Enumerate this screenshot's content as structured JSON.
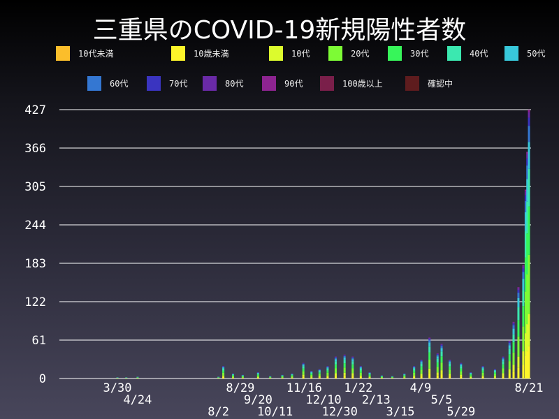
{
  "chart_data": {
    "type": "bar",
    "stacked": true,
    "title": "三重県のCOVID-19新規陽性者数",
    "legend": [
      {
        "name": "10代未満",
        "color": "#fbbe2b"
      },
      {
        "name": "10歳未満",
        "color": "#fdf52a"
      },
      {
        "name": "10代",
        "color": "#dcfb2d"
      },
      {
        "name": "20代",
        "color": "#7dfb35"
      },
      {
        "name": "30代",
        "color": "#37f55a"
      },
      {
        "name": "40代",
        "color": "#3be8b0"
      },
      {
        "name": "50代",
        "color": "#38c8db"
      },
      {
        "name": "60代",
        "color": "#3477d2"
      },
      {
        "name": "70代",
        "color": "#3a34c0"
      },
      {
        "name": "80代",
        "color": "#6a2aa7"
      },
      {
        "name": "90代",
        "color": "#8d2490"
      },
      {
        "name": "100歳以上",
        "color": "#7a1f4a"
      },
      {
        "name": "確認中",
        "color": "#5e1c1e"
      }
    ],
    "legend_position": "top",
    "ylim": [
      0,
      427
    ],
    "yticks": [
      0,
      61,
      122,
      183,
      244,
      305,
      366,
      427
    ],
    "xticks": [
      {
        "date": "2020-03-30",
        "label": "3/30"
      },
      {
        "date": "2020-04-24",
        "label": "4/24"
      },
      {
        "date": "2020-08-02",
        "label": "8/2"
      },
      {
        "date": "2020-08-29",
        "label": "8/29"
      },
      {
        "date": "2020-09-20",
        "label": "9/20"
      },
      {
        "date": "2020-10-11",
        "label": "10/11"
      },
      {
        "date": "2020-11-16",
        "label": "11/16"
      },
      {
        "date": "2020-12-10",
        "label": "12/10"
      },
      {
        "date": "2020-12-30",
        "label": "12/30"
      },
      {
        "date": "2021-01-22",
        "label": "1/22"
      },
      {
        "date": "2021-02-13",
        "label": "2/13"
      },
      {
        "date": "2021-03-15",
        "label": "3/15"
      },
      {
        "date": "2021-04-09",
        "label": "4/9"
      },
      {
        "date": "2021-05-05",
        "label": "5/5"
      },
      {
        "date": "2021-05-29",
        "label": "5/29"
      },
      {
        "date": "2021-08-21",
        "label": "8/21"
      }
    ],
    "grid": true,
    "x": [
      "2020-03-30",
      "2020-04-10",
      "2020-04-24",
      "2020-08-02",
      "2020-08-08",
      "2020-08-20",
      "2020-09-01",
      "2020-09-20",
      "2020-10-05",
      "2020-10-20",
      "2020-11-01",
      "2020-11-15",
      "2020-11-25",
      "2020-12-05",
      "2020-12-15",
      "2020-12-25",
      "2021-01-05",
      "2021-01-15",
      "2021-01-25",
      "2021-02-05",
      "2021-02-20",
      "2021-03-05",
      "2021-03-20",
      "2021-04-01",
      "2021-04-10",
      "2021-04-20",
      "2021-04-30",
      "2021-05-05",
      "2021-05-15",
      "2021-05-29",
      "2021-06-10",
      "2021-06-25",
      "2021-07-10",
      "2021-07-20",
      "2021-07-28",
      "2021-08-02",
      "2021-08-08",
      "2021-08-14",
      "2021-08-17",
      "2021-08-19",
      "2021-08-21"
    ],
    "totals": [
      2,
      2,
      3,
      3,
      20,
      8,
      6,
      10,
      4,
      6,
      8,
      25,
      12,
      15,
      20,
      35,
      38,
      35,
      20,
      10,
      5,
      4,
      8,
      20,
      30,
      65,
      40,
      55,
      30,
      25,
      10,
      20,
      15,
      35,
      60,
      90,
      145,
      180,
      300,
      360,
      427
    ],
    "group_shares": [
      0,
      0.12,
      0.12,
      0.22,
      0.18,
      0.14,
      0.1,
      0.06,
      0.03,
      0.02,
      0.01,
      0,
      0
    ]
  }
}
